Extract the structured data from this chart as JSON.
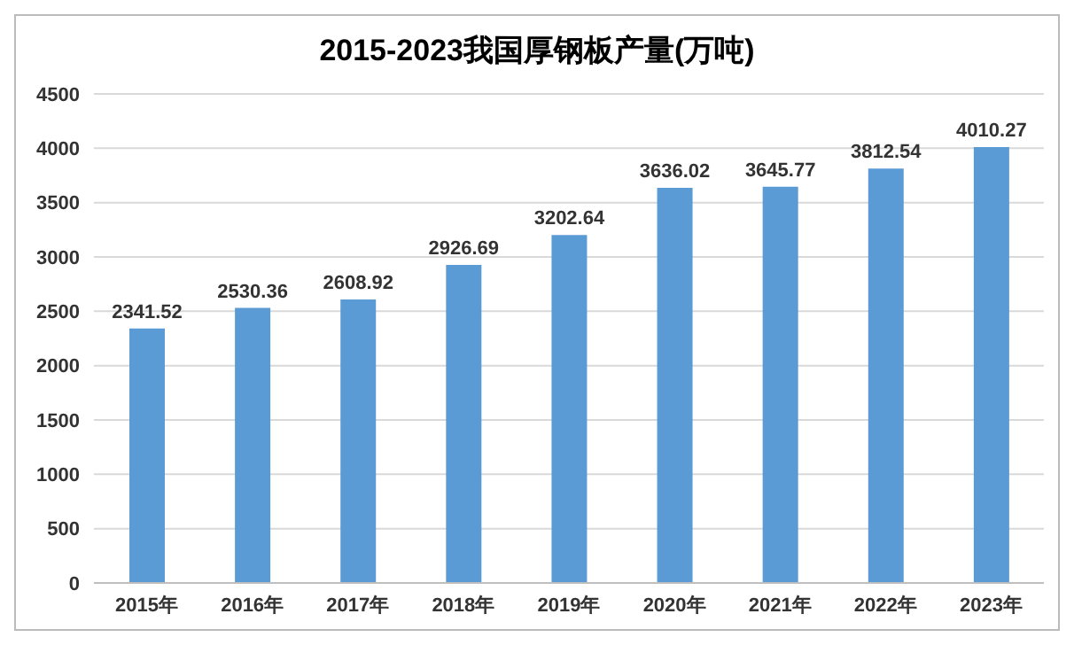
{
  "chart_data": {
    "type": "bar",
    "title": "2015-2023我国厚钢板产量(万吨)",
    "categories": [
      "2015年",
      "2016年",
      "2017年",
      "2018年",
      "2019年",
      "2020年",
      "2021年",
      "2022年",
      "2023年"
    ],
    "values": [
      2341.52,
      2530.36,
      2608.92,
      2926.69,
      3202.64,
      3636.02,
      3645.77,
      3812.54,
      4010.27
    ],
    "color": "#5b9bd5",
    "ylim": [
      0,
      4500
    ],
    "yticks": [
      0,
      500,
      1000,
      1500,
      2000,
      2500,
      3000,
      3500,
      4000,
      4500
    ],
    "grid": "y",
    "data_labels": true
  }
}
